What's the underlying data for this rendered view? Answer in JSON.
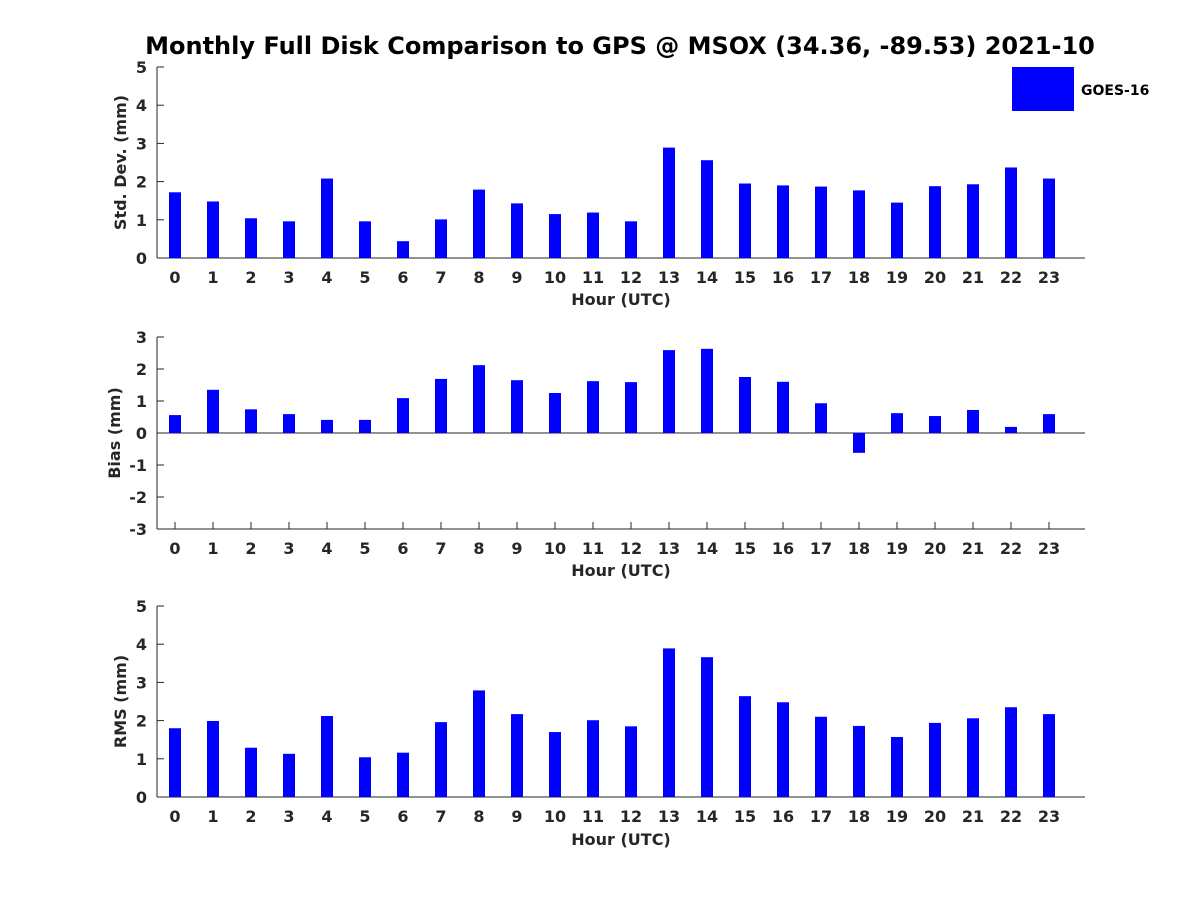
{
  "figure_title": "Monthly Full Disk Comparison to GPS @ MSOX (34.36, -89.53) 2021-10",
  "legend": {
    "label": "GOES-16",
    "color": "#0000ff"
  },
  "chart_data": [
    {
      "type": "bar",
      "series_name": "GOES-16",
      "color": "#0000ff",
      "xlabel": "Hour (UTC)",
      "ylabel": "Std. Dev. (mm)",
      "ylim": [
        0,
        5
      ],
      "yticks": [
        0,
        1,
        2,
        3,
        4,
        5
      ],
      "categories": [
        "0",
        "1",
        "2",
        "3",
        "4",
        "5",
        "6",
        "7",
        "8",
        "9",
        "10",
        "11",
        "12",
        "13",
        "14",
        "15",
        "16",
        "17",
        "18",
        "19",
        "20",
        "21",
        "22",
        "23"
      ],
      "values": [
        1.72,
        1.48,
        1.04,
        0.96,
        2.08,
        0.96,
        0.44,
        1.01,
        1.79,
        1.43,
        1.15,
        1.19,
        0.96,
        2.89,
        2.56,
        1.95,
        1.9,
        1.87,
        1.77,
        1.45,
        1.88,
        1.93,
        2.37,
        2.08
      ],
      "grid": false
    },
    {
      "type": "bar",
      "series_name": "GOES-16",
      "color": "#0000ff",
      "xlabel": "Hour (UTC)",
      "ylabel": "Bias (mm)",
      "ylim": [
        -3,
        3
      ],
      "yticks": [
        -3,
        -2,
        -1,
        0,
        1,
        2,
        3
      ],
      "zero_line": true,
      "categories": [
        "0",
        "1",
        "2",
        "3",
        "4",
        "5",
        "6",
        "7",
        "8",
        "9",
        "10",
        "11",
        "12",
        "13",
        "14",
        "15",
        "16",
        "17",
        "18",
        "19",
        "20",
        "21",
        "22",
        "23"
      ],
      "values": [
        0.56,
        1.35,
        0.74,
        0.59,
        0.41,
        0.41,
        1.09,
        1.69,
        2.12,
        1.65,
        1.25,
        1.62,
        1.59,
        2.59,
        2.63,
        1.75,
        1.6,
        0.93,
        -0.62,
        0.62,
        0.53,
        0.72,
        0.19,
        0.59
      ],
      "grid": false
    },
    {
      "type": "bar",
      "series_name": "GOES-16",
      "color": "#0000ff",
      "xlabel": "Hour (UTC)",
      "ylabel": "RMS (mm)",
      "ylim": [
        0,
        5
      ],
      "yticks": [
        0,
        1,
        2,
        3,
        4,
        5
      ],
      "categories": [
        "0",
        "1",
        "2",
        "3",
        "4",
        "5",
        "6",
        "7",
        "8",
        "9",
        "10",
        "11",
        "12",
        "13",
        "14",
        "15",
        "16",
        "17",
        "18",
        "19",
        "20",
        "21",
        "22",
        "23"
      ],
      "values": [
        1.8,
        1.99,
        1.29,
        1.13,
        2.12,
        1.04,
        1.16,
        1.96,
        2.79,
        2.17,
        1.7,
        2.01,
        1.85,
        3.89,
        3.66,
        2.64,
        2.48,
        2.1,
        1.86,
        1.57,
        1.94,
        2.06,
        2.35,
        2.17
      ],
      "grid": false
    }
  ]
}
